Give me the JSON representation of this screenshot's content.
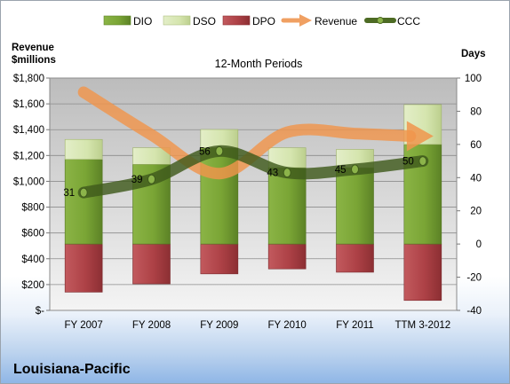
{
  "company": "Louisiana-Pacific",
  "chart_data": {
    "type": "bar",
    "title": "12-Month Periods",
    "categories": [
      "FY 2007",
      "FY 2008",
      "FY 2009",
      "FY 2010",
      "FY 2011",
      "TTM 3-2012"
    ],
    "left_axis": {
      "label_line1": "Revenue",
      "label_line2": "$millions",
      "range": [
        0,
        1800
      ],
      "ticks": [
        0,
        200,
        400,
        600,
        800,
        1000,
        1200,
        1400,
        1600,
        1800
      ],
      "tick_labels": [
        "$-",
        "$200",
        "$400",
        "$600",
        "$800",
        "$1,000",
        "$1,200",
        "$1,400",
        "$1,600",
        "$1,800"
      ]
    },
    "right_axis": {
      "label": "Days",
      "range": [
        -40,
        100
      ],
      "ticks": [
        -40,
        -20,
        0,
        20,
        40,
        60,
        80,
        100
      ],
      "tick_labels": [
        "-40",
        "-20",
        "0",
        "20",
        "40",
        "60",
        "80",
        "100"
      ]
    },
    "legend": [
      {
        "name": "DIO",
        "kind": "bar",
        "color": "#77a033"
      },
      {
        "name": "DSO",
        "kind": "bar",
        "color": "#d7e6b4"
      },
      {
        "name": "DPO",
        "kind": "bar",
        "color": "#b0454a"
      },
      {
        "name": "Revenue",
        "kind": "arrow",
        "color": "#f0a062"
      },
      {
        "name": "CCC",
        "kind": "line",
        "color": "#4d6b24"
      }
    ],
    "legend_position": "top",
    "grid": true,
    "series": [
      {
        "name": "DIO",
        "axis": "right",
        "values": [
          51,
          48,
          58,
          46,
          46,
          60
        ]
      },
      {
        "name": "DSO",
        "axis": "right",
        "values": [
          12,
          10,
          11,
          12,
          11,
          24
        ]
      },
      {
        "name": "DPO",
        "axis": "right",
        "values": [
          -29,
          -24,
          -18,
          -15,
          -17,
          -34
        ]
      },
      {
        "name": "Revenue",
        "axis": "left",
        "values": [
          1690,
          1360,
          1060,
          1380,
          1370,
          1350
        ]
      },
      {
        "name": "CCC",
        "axis": "right",
        "values": [
          31,
          39,
          56,
          43,
          45,
          50
        ],
        "labels": [
          "31",
          "39",
          "56",
          "43",
          "45",
          "50"
        ]
      }
    ]
  }
}
